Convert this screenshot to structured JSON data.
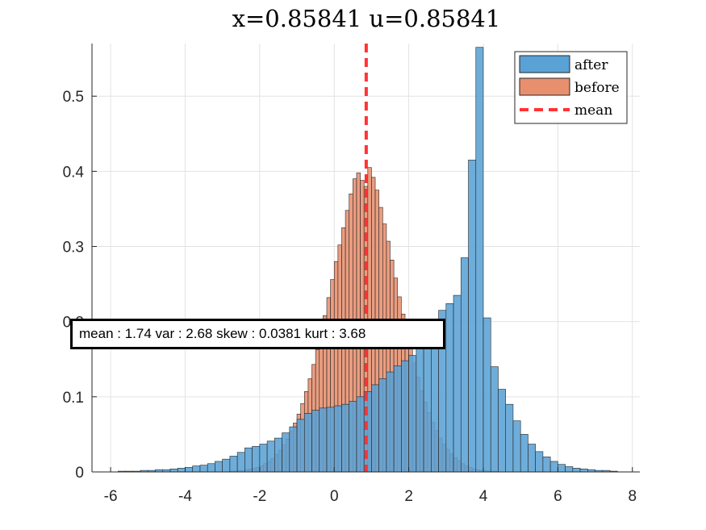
{
  "chart_data": {
    "type": "bar",
    "title": "x=0.85841  u=0.85841",
    "xlabel": "",
    "ylabel": "",
    "xlim": [
      -6.5,
      8.2
    ],
    "ylim": [
      0,
      0.57
    ],
    "xticks": [
      -6,
      -4,
      -2,
      0,
      2,
      4,
      6,
      8
    ],
    "yticks": [
      0,
      0.1,
      0.2,
      0.3,
      0.4,
      0.5
    ],
    "xtick_labels": [
      "-6",
      "-4",
      "-2",
      "0",
      "2",
      "4",
      "6",
      "8"
    ],
    "ytick_labels": [
      "0",
      "0.1",
      "0.2",
      "0.3",
      "0.4",
      "0.5"
    ],
    "grid": true,
    "legend_placement": "top-right",
    "mean_line": {
      "name": "mean",
      "x": 0.85841,
      "color": "#ff3333"
    },
    "annotation": "mean : 1.74 var : 2.68 skew : 0.0381 kurt : 3.68",
    "series": [
      {
        "name": "after",
        "color": "#5aa2d5",
        "bin_edges": [
          -5.8,
          -5.6,
          -5.4,
          -5.2,
          -5.0,
          -4.8,
          -4.6,
          -4.4,
          -4.2,
          -4.0,
          -3.8,
          -3.6,
          -3.4,
          -3.2,
          -3.0,
          -2.8,
          -2.6,
          -2.4,
          -2.2,
          -2.0,
          -1.8,
          -1.6,
          -1.4,
          -1.2,
          -1.0,
          -0.8,
          -0.6,
          -0.4,
          -0.2,
          0.0,
          0.2,
          0.4,
          0.6,
          0.8,
          1.0,
          1.2,
          1.4,
          1.6,
          1.8,
          2.0,
          2.2,
          2.4,
          2.6,
          2.8,
          3.0,
          3.2,
          3.4,
          3.6,
          3.8,
          4.0,
          4.2,
          4.4,
          4.6,
          4.8,
          5.0,
          5.2,
          5.4,
          5.6,
          5.8,
          6.0,
          6.2,
          6.4,
          6.6,
          6.8,
          7.0,
          7.2,
          7.4,
          7.6
        ],
        "values": [
          0.001,
          0.001,
          0.001,
          0.002,
          0.002,
          0.003,
          0.003,
          0.004,
          0.005,
          0.006,
          0.008,
          0.009,
          0.011,
          0.014,
          0.017,
          0.021,
          0.026,
          0.032,
          0.034,
          0.037,
          0.041,
          0.045,
          0.052,
          0.06,
          0.07,
          0.078,
          0.082,
          0.085,
          0.086,
          0.088,
          0.09,
          0.094,
          0.1,
          0.107,
          0.116,
          0.124,
          0.133,
          0.141,
          0.148,
          0.155,
          0.165,
          0.18,
          0.197,
          0.215,
          0.224,
          0.235,
          0.285,
          0.415,
          0.565,
          0.205,
          0.14,
          0.11,
          0.09,
          0.068,
          0.05,
          0.037,
          0.027,
          0.02,
          0.014,
          0.01,
          0.007,
          0.005,
          0.004,
          0.003,
          0.002,
          0.002,
          0.001
        ]
      },
      {
        "name": "before",
        "color": "#e8906e",
        "bin_edges": [
          -2.8,
          -2.7,
          -2.6,
          -2.5,
          -2.4,
          -2.3,
          -2.2,
          -2.1,
          -2.0,
          -1.9,
          -1.8,
          -1.7,
          -1.6,
          -1.5,
          -1.4,
          -1.3,
          -1.2,
          -1.1,
          -1.0,
          -0.9,
          -0.8,
          -0.7,
          -0.6,
          -0.5,
          -0.4,
          -0.3,
          -0.2,
          -0.1,
          0.0,
          0.1,
          0.2,
          0.3,
          0.4,
          0.5,
          0.6,
          0.7,
          0.8,
          0.9,
          1.0,
          1.1,
          1.2,
          1.3,
          1.4,
          1.5,
          1.6,
          1.7,
          1.8,
          1.9,
          2.0,
          2.1,
          2.2,
          2.3,
          2.4,
          2.5,
          2.6,
          2.7,
          2.8,
          2.9,
          3.0,
          3.1,
          3.2,
          3.3,
          3.4,
          3.5,
          3.6,
          3.7,
          3.8,
          3.9,
          4.0,
          4.1,
          4.2,
          4.3,
          4.4
        ],
        "values": [
          0.001,
          0.001,
          0.002,
          0.002,
          0.003,
          0.004,
          0.005,
          0.006,
          0.008,
          0.011,
          0.014,
          0.018,
          0.023,
          0.029,
          0.036,
          0.044,
          0.054,
          0.065,
          0.077,
          0.091,
          0.107,
          0.124,
          0.143,
          0.163,
          0.185,
          0.208,
          0.232,
          0.256,
          0.28,
          0.302,
          0.325,
          0.348,
          0.37,
          0.39,
          0.398,
          0.388,
          0.38,
          0.405,
          0.392,
          0.375,
          0.352,
          0.33,
          0.307,
          0.282,
          0.258,
          0.233,
          0.21,
          0.187,
          0.165,
          0.145,
          0.126,
          0.108,
          0.093,
          0.079,
          0.066,
          0.055,
          0.045,
          0.037,
          0.03,
          0.024,
          0.019,
          0.015,
          0.011,
          0.008,
          0.006,
          0.004,
          0.003,
          0.002,
          0.002,
          0.001,
          0.001,
          0.001
        ]
      }
    ]
  }
}
